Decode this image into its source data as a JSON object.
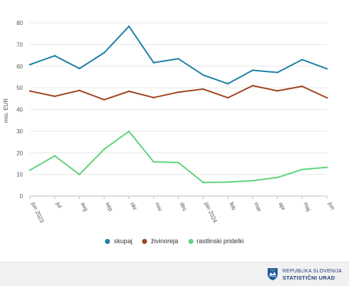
{
  "chart_data": {
    "type": "line",
    "title": "",
    "xlabel": "",
    "ylabel": "mio. EUR",
    "ylim": [
      0,
      80
    ],
    "yticks": [
      "0",
      "10",
      "20",
      "30",
      "40",
      "50",
      "60",
      "70",
      "80"
    ],
    "categories": [
      "jun 2023",
      "jul",
      "avg",
      "sep",
      "okt",
      "nov",
      "dec",
      "jan 2024",
      "feb",
      "mar",
      "apr",
      "maj",
      "jun"
    ],
    "grid": true,
    "legend_position": "bottom",
    "series": [
      {
        "name": "skupaj",
        "color": "#1f7fa8",
        "values": [
          60.7,
          64.8,
          58.9,
          66.2,
          78.4,
          61.6,
          63.4,
          55.9,
          51.9,
          58.1,
          57.1,
          63.0,
          58.8
        ]
      },
      {
        "name": "živinoreja",
        "color": "#a0441f",
        "values": [
          48.5,
          46.1,
          48.8,
          44.5,
          48.4,
          45.5,
          48.0,
          49.4,
          45.4,
          51.0,
          48.6,
          50.7,
          45.4
        ]
      },
      {
        "name": "rastlinski pridelki",
        "color": "#5fd47a",
        "values": [
          12.0,
          18.6,
          10.0,
          21.7,
          29.9,
          15.8,
          15.5,
          6.3,
          6.5,
          7.1,
          8.6,
          12.3,
          13.3
        ]
      }
    ]
  },
  "footer": {
    "org_line1": "REPUBLIKA SLOVENIJA",
    "org_line2": "STATISTIČNI URAD"
  }
}
